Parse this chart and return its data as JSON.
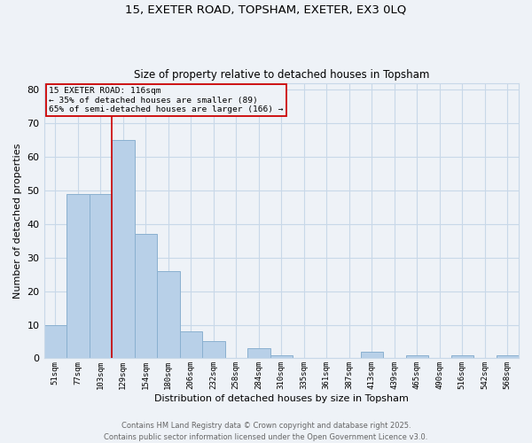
{
  "title1": "15, EXETER ROAD, TOPSHAM, EXETER, EX3 0LQ",
  "title2": "Size of property relative to detached houses in Topsham",
  "xlabel": "Distribution of detached houses by size in Topsham",
  "ylabel": "Number of detached properties",
  "categories": [
    "51sqm",
    "77sqm",
    "103sqm",
    "129sqm",
    "154sqm",
    "180sqm",
    "206sqm",
    "232sqm",
    "258sqm",
    "284sqm",
    "310sqm",
    "335sqm",
    "361sqm",
    "387sqm",
    "413sqm",
    "439sqm",
    "465sqm",
    "490sqm",
    "516sqm",
    "542sqm",
    "568sqm"
  ],
  "values": [
    10,
    49,
    49,
    65,
    37,
    26,
    8,
    5,
    0,
    3,
    1,
    0,
    0,
    0,
    2,
    0,
    1,
    0,
    1,
    0,
    1
  ],
  "bar_color": "#b8d0e8",
  "bar_edge_color": "#8ab0d0",
  "annotation_title": "15 EXETER ROAD: 116sqm",
  "annotation_line1": "← 35% of detached houses are smaller (89)",
  "annotation_line2": "65% of semi-detached houses are larger (166) →",
  "vline_color": "#cc0000",
  "annotation_box_color": "#cc0000",
  "ylim": [
    0,
    82
  ],
  "yticks": [
    0,
    10,
    20,
    30,
    40,
    50,
    60,
    70,
    80
  ],
  "footer1": "Contains HM Land Registry data © Crown copyright and database right 2025.",
  "footer2": "Contains public sector information licensed under the Open Government Licence v3.0.",
  "bg_color": "#eef2f7",
  "grid_color": "#c8d8e8"
}
